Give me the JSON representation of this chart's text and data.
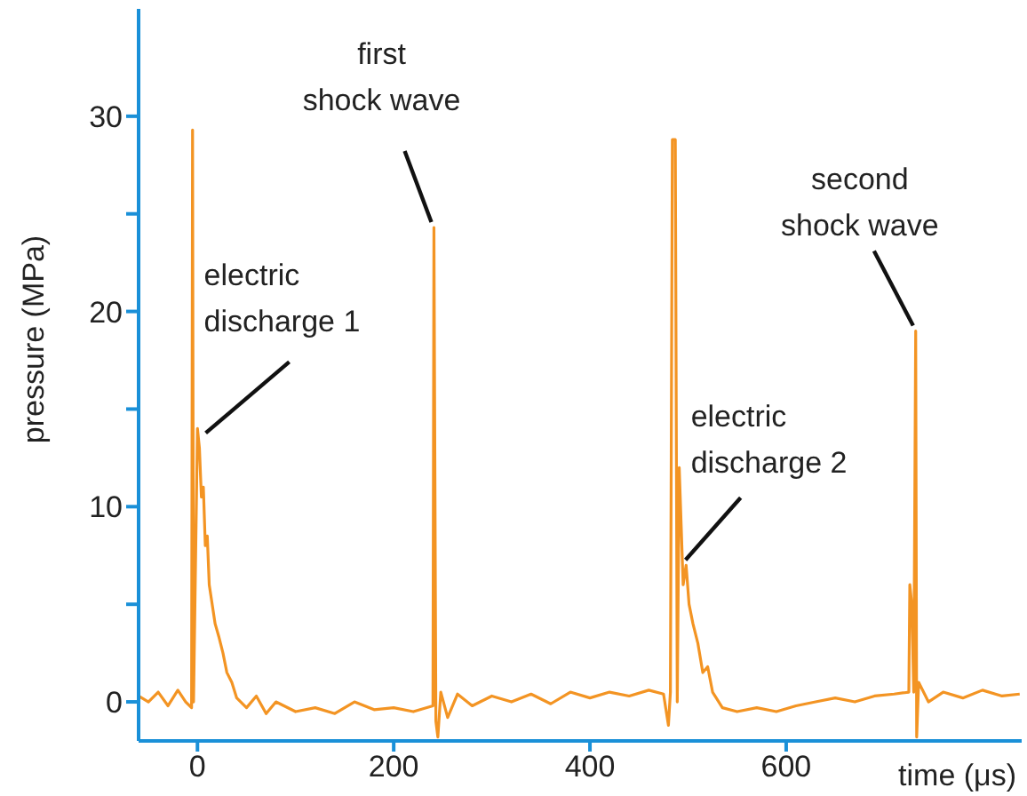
{
  "chart_data": {
    "type": "line",
    "xlabel": "time (μs)",
    "ylabel": "pressure (MPa)",
    "xlim": [
      -60,
      840
    ],
    "xticks": [
      0,
      200,
      400,
      600
    ],
    "ylim": [
      -2,
      35.5
    ],
    "yticks": [
      0,
      {
        "value": 5,
        "label": null
      },
      10,
      {
        "value": 15,
        "label": null
      },
      20,
      {
        "value": 25,
        "label": null
      },
      30
    ],
    "grid": false,
    "legend": false,
    "marker": "none",
    "line_style": "solid",
    "series": [
      {
        "color": "#f39423",
        "x": [
          -60,
          -50,
          -40,
          -30,
          -20,
          -12,
          -6,
          -5,
          -4,
          0,
          2,
          4,
          6,
          8,
          10,
          12,
          15,
          18,
          22,
          26,
          30,
          35,
          40,
          50,
          60,
          70,
          80,
          100,
          120,
          140,
          160,
          180,
          200,
          220,
          240,
          241,
          243,
          245,
          248,
          255,
          265,
          280,
          300,
          320,
          340,
          360,
          380,
          400,
          420,
          440,
          460,
          475,
          480,
          482,
          484,
          487,
          489,
          491,
          493,
          495,
          498,
          501,
          505,
          510,
          515,
          520,
          525,
          535,
          550,
          570,
          590,
          610,
          630,
          650,
          670,
          690,
          710,
          725,
          726,
          728,
          730,
          732,
          733,
          735,
          745,
          760,
          780,
          800,
          820,
          838
        ],
        "values": [
          0.3,
          0,
          0.5,
          -0.2,
          0.6,
          0,
          -0.3,
          29.3,
          0,
          14,
          13,
          10.5,
          11,
          8,
          8.5,
          6,
          5,
          4,
          3.3,
          2.5,
          1.5,
          1,
          0.2,
          -0.3,
          0.3,
          -0.6,
          0,
          -0.5,
          -0.3,
          -0.6,
          0,
          -0.4,
          -0.3,
          -0.5,
          -0.2,
          24.3,
          -1,
          -1.8,
          0.5,
          -0.8,
          0.4,
          -0.2,
          0.3,
          0,
          0.4,
          -0.1,
          0.5,
          0.2,
          0.5,
          0.3,
          0.6,
          0.4,
          -1.2,
          0.5,
          28.8,
          28.8,
          0,
          12,
          9,
          6,
          7,
          5,
          4,
          3,
          1.5,
          1.8,
          0.5,
          -0.3,
          -0.5,
          -0.3,
          -0.5,
          -0.2,
          0,
          0.2,
          0,
          0.3,
          0.4,
          0.5,
          6,
          5,
          0.5,
          19,
          -1.8,
          1,
          0,
          0.5,
          0.2,
          0.6,
          0.3,
          0.4
        ]
      }
    ],
    "annotations": [
      {
        "text": "first shock wave",
        "x": 242,
        "y": 24.3
      },
      {
        "text": "electric discharge 1",
        "x": 3,
        "y": 13.5
      },
      {
        "text": "electric discharge 2",
        "x": 492,
        "y": 7
      },
      {
        "text": "second shock wave",
        "x": 733,
        "y": 19
      }
    ]
  }
}
